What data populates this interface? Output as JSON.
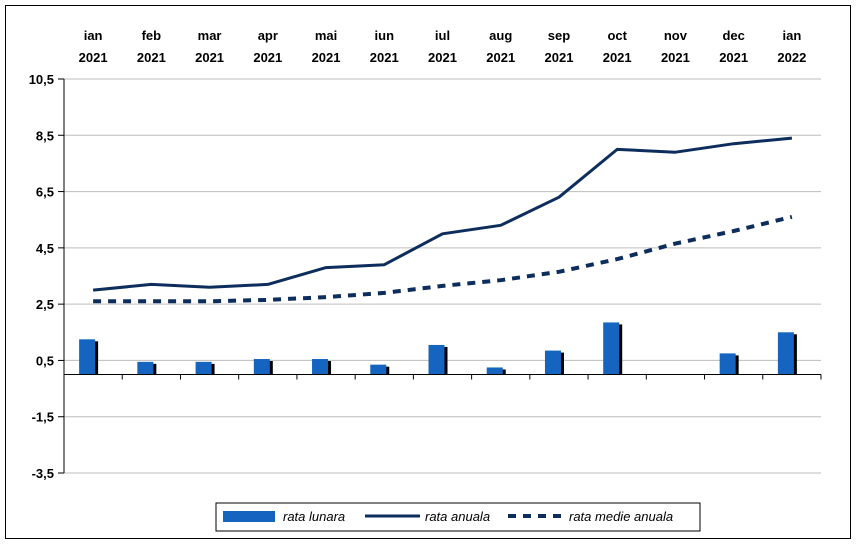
{
  "chart_data": {
    "type": "bar+line",
    "categories": [
      [
        "ian",
        "2021"
      ],
      [
        "feb",
        "2021"
      ],
      [
        "mar",
        "2021"
      ],
      [
        "apr",
        "2021"
      ],
      [
        "mai",
        "2021"
      ],
      [
        "iun",
        "2021"
      ],
      [
        "iul",
        "2021"
      ],
      [
        "aug",
        "2021"
      ],
      [
        "sep",
        "2021"
      ],
      [
        "oct",
        "2021"
      ],
      [
        "nov",
        "2021"
      ],
      [
        "dec",
        "2021"
      ],
      [
        "ian",
        "2022"
      ]
    ],
    "y_ticks": [
      "10,5",
      "8,5",
      "6,5",
      "4,5",
      "2,5",
      "0,5",
      "-1,5",
      "-3,5"
    ],
    "y_tick_values": [
      10.5,
      8.5,
      6.5,
      4.5,
      2.5,
      0.5,
      -1.5,
      -3.5
    ],
    "ylim": [
      -3.5,
      10.5
    ],
    "grid": true,
    "legend_position": "bottom",
    "series": [
      {
        "name": "rata lunara",
        "type": "bar",
        "color": "#1565c0",
        "values": [
          1.25,
          0.45,
          0.45,
          0.55,
          0.55,
          0.35,
          1.05,
          0.25,
          0.85,
          1.85,
          null,
          0.75,
          1.5
        ]
      },
      {
        "name": "rata anuala",
        "type": "line",
        "color": "#0d2d5c",
        "values": [
          3.0,
          3.2,
          3.1,
          3.2,
          3.8,
          3.9,
          5.0,
          5.3,
          6.3,
          8.0,
          7.9,
          8.2,
          8.4
        ]
      },
      {
        "name": "rata medie anuala",
        "type": "dashed-line",
        "color": "#0d2d5c",
        "values": [
          2.6,
          2.6,
          2.6,
          2.65,
          2.75,
          2.9,
          3.15,
          3.35,
          3.65,
          4.1,
          4.65,
          5.1,
          5.6
        ]
      }
    ]
  }
}
